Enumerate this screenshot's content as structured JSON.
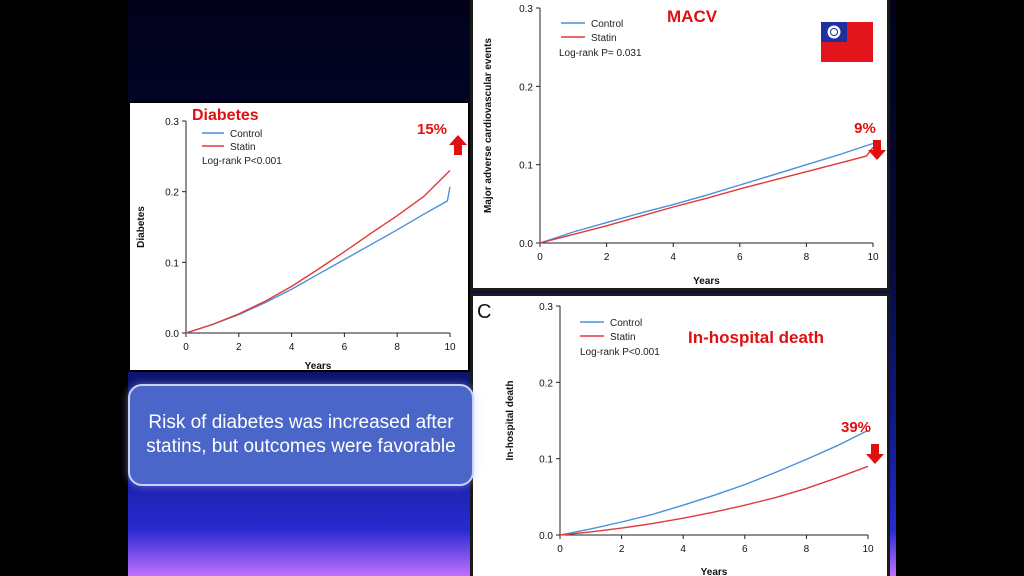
{
  "callout": {
    "text": "Risk of diabetes was increased after statins, but outcomes were favorable"
  },
  "chart_data": [
    {
      "type": "line",
      "title": "Diabetes",
      "xlabel": "Years",
      "ylabel": "Diabetes",
      "xlim": [
        0,
        10
      ],
      "ylim": [
        0,
        0.3
      ],
      "xticks": [
        "0",
        "2",
        "4",
        "6",
        "8",
        "10"
      ],
      "yticks": [
        "0.0",
        "0.1",
        "0.2",
        "0.3"
      ],
      "legend": [
        "Control",
        "Statin"
      ],
      "annotation": "Log-rank P<0.001",
      "change_label": "15%",
      "change_direction": "up",
      "series": [
        {
          "name": "Control",
          "color": "#4a90d9",
          "x": [
            0,
            1,
            2,
            3,
            4,
            5,
            6,
            7,
            8,
            9,
            9.9,
            10
          ],
          "y": [
            0,
            0.012,
            0.026,
            0.043,
            0.062,
            0.083,
            0.104,
            0.125,
            0.146,
            0.168,
            0.187,
            0.207
          ]
        },
        {
          "name": "Statin",
          "color": "#e03a3a",
          "x": [
            0,
            1,
            2,
            3,
            4,
            5,
            6,
            7,
            8,
            9,
            10
          ],
          "y": [
            0,
            0.012,
            0.027,
            0.045,
            0.066,
            0.09,
            0.115,
            0.141,
            0.166,
            0.193,
            0.23
          ]
        }
      ]
    },
    {
      "type": "line",
      "title": "MACV",
      "xlabel": "Years",
      "ylabel": "Major adverse cardiovascular events",
      "xlim": [
        0,
        10
      ],
      "ylim": [
        0,
        0.3
      ],
      "xticks": [
        "0",
        "2",
        "4",
        "6",
        "8",
        "10"
      ],
      "yticks": [
        "0.0",
        "0.1",
        "0.2",
        "0.3"
      ],
      "legend": [
        "Control",
        "Statin"
      ],
      "annotation": "Log-rank P= 0.031",
      "change_label": "9%",
      "change_direction": "down",
      "series": [
        {
          "name": "Control",
          "color": "#4a90d9",
          "x": [
            0,
            1,
            2,
            3,
            4,
            5,
            6,
            7,
            8,
            9,
            10
          ],
          "y": [
            0,
            0.014,
            0.026,
            0.038,
            0.049,
            0.061,
            0.074,
            0.087,
            0.1,
            0.113,
            0.127
          ]
        },
        {
          "name": "Statin",
          "color": "#e03a3a",
          "x": [
            0,
            1,
            2,
            3,
            4,
            5,
            6,
            7,
            8,
            9,
            9.8,
            10
          ],
          "y": [
            0,
            0.011,
            0.022,
            0.034,
            0.046,
            0.057,
            0.069,
            0.08,
            0.091,
            0.102,
            0.111,
            0.122
          ]
        }
      ]
    },
    {
      "type": "line",
      "title": "In-hospital death",
      "panel_label": "C",
      "xlabel": "Years",
      "ylabel": "In-hospital death",
      "xlim": [
        0,
        10
      ],
      "ylim": [
        0,
        0.3
      ],
      "xticks": [
        "0",
        "2",
        "4",
        "6",
        "8",
        "10"
      ],
      "yticks": [
        "0.0",
        "0.1",
        "0.2",
        "0.3"
      ],
      "legend": [
        "Control",
        "Statin"
      ],
      "annotation": "Log-rank P<0.001",
      "change_label": "39%",
      "change_direction": "down",
      "series": [
        {
          "name": "Control",
          "color": "#4a90d9",
          "x": [
            0,
            1,
            2,
            3,
            4,
            5,
            6,
            7,
            8,
            9,
            10
          ],
          "y": [
            0,
            0.008,
            0.017,
            0.027,
            0.039,
            0.052,
            0.066,
            0.082,
            0.099,
            0.117,
            0.137
          ]
        },
        {
          "name": "Statin",
          "color": "#e03a3a",
          "x": [
            0,
            1,
            2,
            3,
            4,
            5,
            6,
            7,
            8,
            9,
            10
          ],
          "y": [
            0,
            0.004,
            0.009,
            0.015,
            0.022,
            0.03,
            0.039,
            0.049,
            0.061,
            0.075,
            0.09
          ]
        }
      ]
    }
  ]
}
